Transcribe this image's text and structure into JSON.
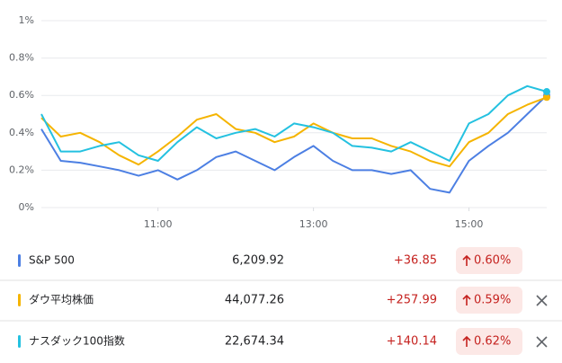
{
  "chart_data": {
    "type": "line",
    "x": [
      9.5,
      9.75,
      10,
      10.25,
      10.5,
      10.75,
      11,
      11.25,
      11.5,
      11.75,
      12,
      12.25,
      12.5,
      12.75,
      13,
      13.25,
      13.5,
      13.75,
      14,
      14.25,
      14.5,
      14.75,
      15,
      15.25,
      15.5,
      15.75,
      16
    ],
    "xlim": [
      9.5,
      16
    ],
    "xticks": [
      {
        "value": 11,
        "label": "11:00"
      },
      {
        "value": 13,
        "label": "13:00"
      },
      {
        "value": 15,
        "label": "15:00"
      }
    ],
    "ylim": [
      0,
      1
    ],
    "yticks": [
      {
        "value": 0,
        "label": "0%"
      },
      {
        "value": 0.2,
        "label": "0.2%"
      },
      {
        "value": 0.4,
        "label": "0.4%"
      },
      {
        "value": 0.6,
        "label": "0.6%"
      },
      {
        "value": 0.8,
        "label": "0.8%"
      },
      {
        "value": 1,
        "label": "1%"
      }
    ],
    "grid": true,
    "series": [
      {
        "name": "S&P 500",
        "color": "#4c7fe3",
        "values": [
          0.42,
          0.25,
          0.24,
          0.22,
          0.2,
          0.17,
          0.2,
          0.15,
          0.2,
          0.27,
          0.3,
          0.25,
          0.2,
          0.27,
          0.33,
          0.25,
          0.2,
          0.2,
          0.18,
          0.2,
          0.1,
          0.08,
          0.25,
          0.33,
          0.4,
          0.5,
          0.6
        ]
      },
      {
        "name": "ダウ平均株価",
        "color": "#f5b400",
        "values": [
          0.48,
          0.38,
          0.4,
          0.35,
          0.28,
          0.23,
          0.3,
          0.38,
          0.47,
          0.5,
          0.42,
          0.4,
          0.35,
          0.38,
          0.45,
          0.4,
          0.37,
          0.37,
          0.33,
          0.3,
          0.25,
          0.22,
          0.35,
          0.4,
          0.5,
          0.55,
          0.59
        ]
      },
      {
        "name": "ナスダック100指数",
        "color": "#24c1e0",
        "values": [
          0.5,
          0.3,
          0.3,
          0.33,
          0.35,
          0.28,
          0.25,
          0.35,
          0.43,
          0.37,
          0.4,
          0.42,
          0.38,
          0.45,
          0.43,
          0.4,
          0.33,
          0.32,
          0.3,
          0.35,
          0.3,
          0.25,
          0.45,
          0.5,
          0.6,
          0.65,
          0.62
        ]
      }
    ]
  },
  "table": {
    "rows": [
      {
        "price": "6,209.92",
        "change": "+36.85",
        "percent": "0.60%"
      },
      {
        "price": "44,077.26",
        "change": "+257.99",
        "percent": "0.59%"
      },
      {
        "price": "22,674.34",
        "change": "+140.14",
        "percent": "0.62%"
      }
    ]
  }
}
